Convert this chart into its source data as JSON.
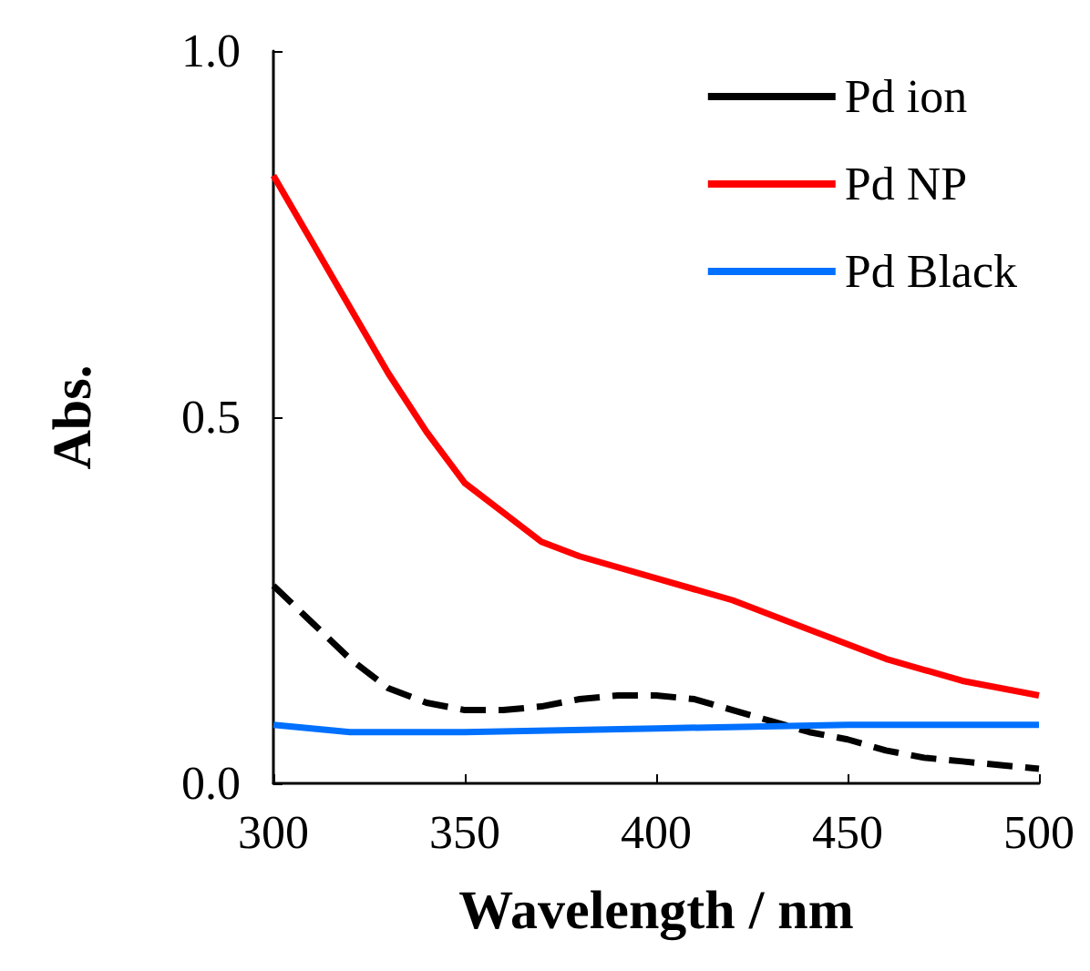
{
  "chart_data": {
    "type": "line",
    "xlabel": "Wavelength / nm",
    "ylabel": "Abs.",
    "xlim": [
      300,
      500
    ],
    "xticks": [
      300,
      350,
      400,
      450,
      500
    ],
    "ylim": [
      0,
      1
    ],
    "yticks": [
      {
        "value": 0,
        "label": "0.0"
      },
      {
        "value": 0.5,
        "label": "0.5"
      },
      {
        "value": 1,
        "label": "1.0"
      }
    ],
    "grid": false,
    "legend": "top right",
    "marker": "none",
    "series": [
      {
        "name": "Pd ion",
        "color": "#000000",
        "line_style": "dashed",
        "x": [
          300,
          310,
          320,
          330,
          340,
          350,
          360,
          370,
          380,
          390,
          400,
          410,
          420,
          430,
          440,
          450,
          460,
          470,
          480,
          490,
          500
        ],
        "values": [
          0.27,
          0.22,
          0.17,
          0.13,
          0.11,
          0.1,
          0.1,
          0.105,
          0.115,
          0.12,
          0.12,
          0.115,
          0.1,
          0.085,
          0.07,
          0.06,
          0.045,
          0.035,
          0.03,
          0.025,
          0.02
        ]
      },
      {
        "name": "Pd NP",
        "color": "#ff0000",
        "line_style": "solid",
        "x": [
          300,
          310,
          320,
          330,
          340,
          350,
          360,
          370,
          380,
          400,
          420,
          440,
          460,
          480,
          500
        ],
        "values": [
          0.83,
          0.74,
          0.65,
          0.56,
          0.48,
          0.41,
          0.37,
          0.33,
          0.31,
          0.28,
          0.25,
          0.21,
          0.17,
          0.14,
          0.12
        ]
      },
      {
        "name": "Pd Black",
        "color": "#0070ff",
        "line_style": "solid",
        "x": [
          300,
          320,
          350,
          400,
          450,
          500
        ],
        "values": [
          0.08,
          0.07,
          0.07,
          0.075,
          0.08,
          0.08
        ]
      }
    ]
  }
}
